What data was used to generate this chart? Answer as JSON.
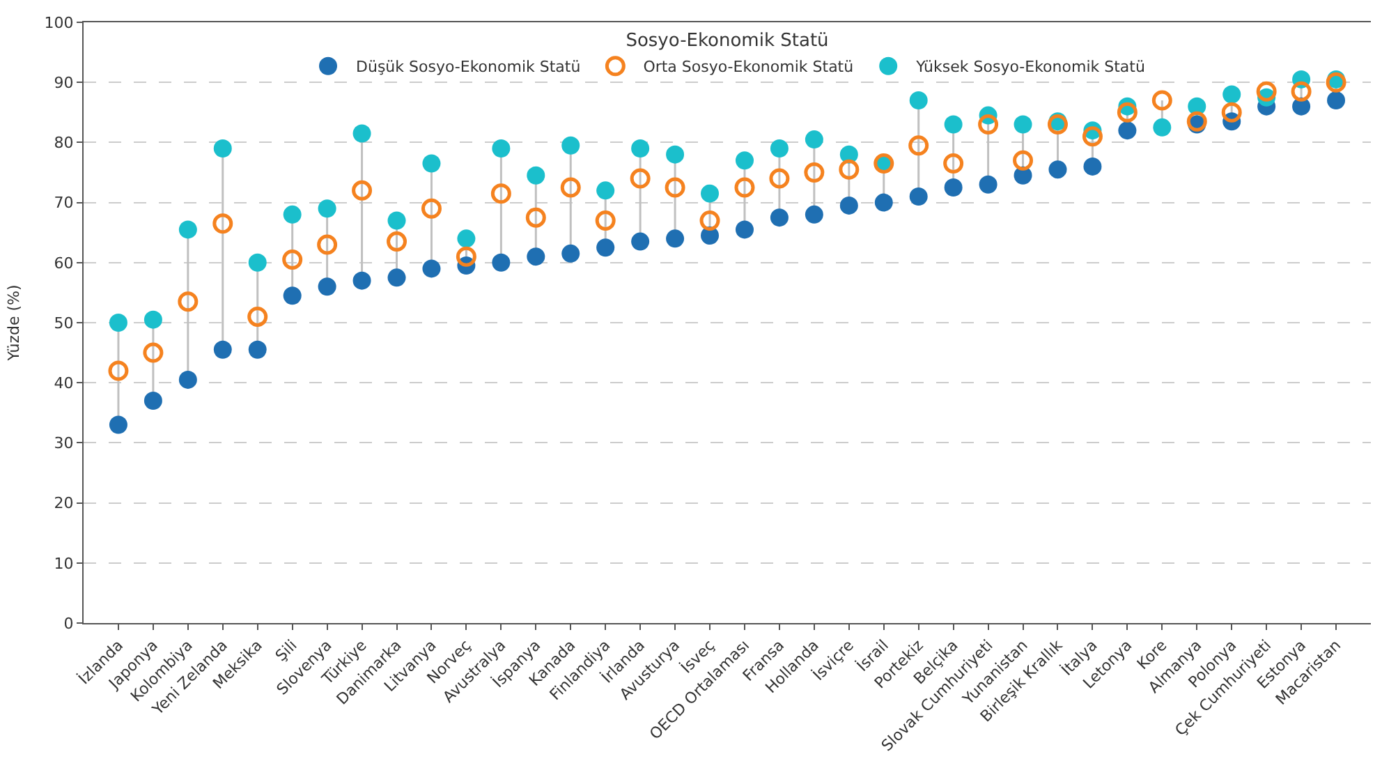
{
  "chart_data": {
    "type": "scatter",
    "ylabel": "Yüzde (%)",
    "legend_title": "Sosyo-Ekonomik Statü",
    "categories": [
      "İzlanda",
      "Japonya",
      "Kolombiya",
      "Yeni Zelanda",
      "Meksika",
      "Şili",
      "Slovenya",
      "Türkiye",
      "Danimarka",
      "Litvanya",
      "Norveç",
      "Avustralya",
      "İspanya",
      "Kanada",
      "Finlandiya",
      "İrlanda",
      "Avusturya",
      "İsveç",
      "OECD Ortalaması",
      "Fransa",
      "Hollanda",
      "İsviçre",
      "İsrail",
      "Portekiz",
      "Belçika",
      "Slovak Cumhuriyeti",
      "Yunanistan",
      "Birleşik Krallık",
      "İtalya",
      "Letonya",
      "Kore",
      "Almanya",
      "Polonya",
      "Çek Cumhuriyeti",
      "Estonya",
      "Macaristan"
    ],
    "series": [
      {
        "name": "Düşük Sosyo-Ekonomik Statü",
        "color": "#1f6fb2",
        "marker": "circle",
        "values": [
          33,
          37,
          40.5,
          45.5,
          45.5,
          54.5,
          56,
          57,
          57.5,
          59,
          59.5,
          60,
          61,
          61.5,
          62.5,
          63.5,
          64,
          64.5,
          65.5,
          67.5,
          68,
          69.5,
          70,
          71,
          72.5,
          73,
          74.5,
          75.5,
          76,
          82,
          null,
          83,
          83.5,
          86,
          86,
          87
        ]
      },
      {
        "name": "Orta Sosyo-Ekonomik Statü",
        "color": "#f5821f",
        "marker": "circle-open",
        "values": [
          42,
          45,
          53.5,
          66.5,
          51,
          60.5,
          63,
          72,
          63.5,
          69,
          61,
          71.5,
          67.5,
          72.5,
          67,
          74,
          72.5,
          67,
          72.5,
          74,
          75,
          75.5,
          76.5,
          79.5,
          76.5,
          83,
          77,
          83,
          81,
          85,
          87,
          83.5,
          85,
          88.5,
          88.5,
          90
        ]
      },
      {
        "name": "Yüksek Sosyo-Ekonomik Statü",
        "color": "#1bbfcc",
        "marker": "circle",
        "values": [
          50,
          50.5,
          65.5,
          79,
          60,
          68,
          69,
          81.5,
          67,
          76.5,
          64,
          79,
          74.5,
          79.5,
          72,
          79,
          78,
          71.5,
          77,
          79,
          80.5,
          78,
          76.5,
          87,
          83,
          84.5,
          83,
          83.5,
          82,
          86,
          82.5,
          86,
          88,
          87.5,
          90.5,
          90.5
        ]
      }
    ],
    "ylim": [
      0,
      100
    ],
    "yticks": [
      0,
      10,
      20,
      30,
      40,
      50,
      60,
      70,
      80,
      90,
      100
    ],
    "grid": "y",
    "legend": "top"
  }
}
